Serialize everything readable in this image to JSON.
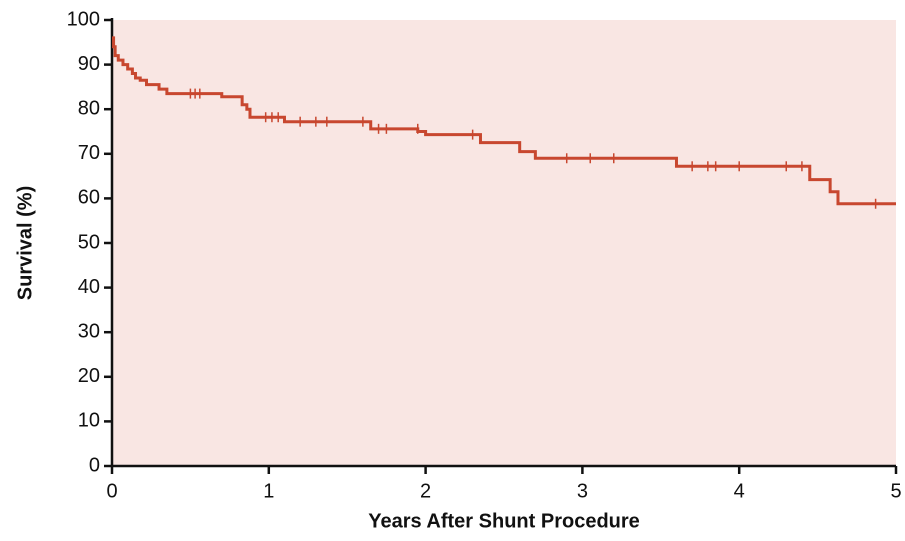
{
  "chart_data": {
    "type": "step",
    "xlabel": "Years After Shunt Procedure",
    "ylabel": "Survival (%)",
    "x": [
      0,
      0.01,
      0.02,
      0.04,
      0.07,
      0.1,
      0.13,
      0.15,
      0.18,
      0.22,
      0.3,
      0.35,
      0.7,
      0.83,
      0.86,
      0.88,
      1.1,
      1.65,
      1.95,
      2.0,
      2.35,
      2.6,
      2.7,
      3.6,
      4.45,
      4.58,
      4.63,
      5
    ],
    "values": [
      96,
      94,
      92,
      91,
      90,
      89,
      88,
      87,
      86.5,
      85.5,
      84.5,
      83.5,
      82.8,
      81,
      80,
      78.2,
      77.2,
      75.6,
      75.0,
      74.3,
      72.5,
      70.5,
      69,
      67.2,
      64.2,
      61.5,
      58.8,
      58.8
    ],
    "censor_x": [
      0.5,
      0.53,
      0.56,
      0.98,
      1.02,
      1.06,
      1.2,
      1.3,
      1.37,
      1.6,
      1.7,
      1.75,
      1.95,
      2.3,
      2.9,
      3.05,
      3.2,
      3.7,
      3.8,
      3.85,
      4.0,
      4.3,
      4.4,
      4.87
    ],
    "censor_values": [
      83.5,
      83.5,
      83.5,
      78.2,
      78.2,
      78.2,
      77.2,
      77.2,
      77.2,
      77.2,
      75.6,
      75.6,
      75.6,
      74.3,
      69,
      69,
      69,
      67.2,
      67.2,
      67.2,
      67.2,
      67.2,
      67.2,
      58.8
    ],
    "color": "#c8472f",
    "background": "#f9e6e3",
    "xlim": [
      0,
      5
    ],
    "xticks": [
      0,
      1,
      2,
      3,
      4,
      5
    ],
    "ylim": [
      0,
      100
    ],
    "yticks": [
      0,
      10,
      20,
      30,
      40,
      50,
      60,
      70,
      80,
      90,
      100
    ]
  }
}
